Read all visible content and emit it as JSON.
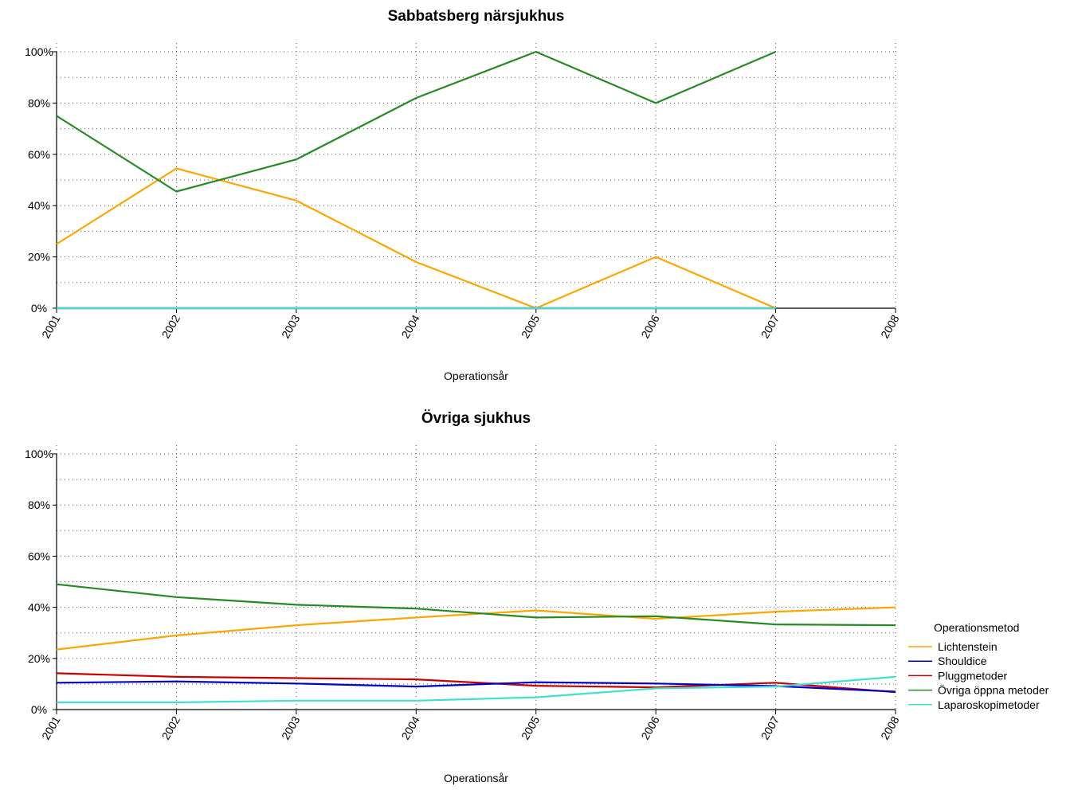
{
  "legend": {
    "title": "Operationsmetod",
    "placement": "right",
    "entries": [
      {
        "name": "Lichtenstein",
        "color": "#FFA500"
      },
      {
        "name": "Shouldice",
        "color": "#0000CD"
      },
      {
        "name": "Pluggmetoder",
        "color": "#CD0000"
      },
      {
        "name": "Övriga öppna metoder",
        "color": "#228B22"
      },
      {
        "name": "Laparoskopimetoder",
        "color": "#40E0D0"
      }
    ]
  },
  "chart_data": [
    {
      "type": "line",
      "title": "Sabbatsberg närsjukhus",
      "xlabel": "Operationsår",
      "ylabel": "",
      "x": [
        "2001",
        "2002",
        "2003",
        "2004",
        "2005",
        "2006",
        "2007",
        "2008"
      ],
      "ylim": [
        0,
        100
      ],
      "y_ticks": [
        "0%",
        "20%",
        "40%",
        "60%",
        "80%",
        "100%"
      ],
      "grid": true,
      "series": [
        {
          "name": "Lichtenstein",
          "color": "#FFA500",
          "values": [
            25,
            54.5,
            42,
            18,
            0,
            20,
            0,
            null
          ]
        },
        {
          "name": "Shouldice",
          "color": "#0000CD",
          "values": [
            0,
            0,
            0,
            0,
            0,
            0,
            0,
            null
          ]
        },
        {
          "name": "Pluggmetoder",
          "color": "#CD0000",
          "values": [
            0,
            0,
            0,
            0,
            0,
            0,
            0,
            null
          ]
        },
        {
          "name": "Laparoskopimetoder",
          "color": "#40E0D0",
          "values": [
            0,
            0,
            0,
            0,
            0,
            0,
            0,
            null
          ]
        },
        {
          "name": "Övriga öppna metoder",
          "color": "#228B22",
          "values": [
            75,
            45.5,
            58,
            82,
            100,
            80,
            100,
            null
          ]
        }
      ]
    },
    {
      "type": "line",
      "title": "Övriga sjukhus",
      "xlabel": "Operationsår",
      "ylabel": "",
      "x": [
        "2001",
        "2002",
        "2003",
        "2004",
        "2005",
        "2006",
        "2007",
        "2008"
      ],
      "ylim": [
        0,
        100
      ],
      "y_ticks": [
        "0%",
        "20%",
        "40%",
        "60%",
        "80%",
        "100%"
      ],
      "grid": true,
      "series": [
        {
          "name": "Lichtenstein",
          "color": "#FFA500",
          "values": [
            23.5,
            29,
            33,
            36,
            38.8,
            35.5,
            38.3,
            40
          ]
        },
        {
          "name": "Övriga öppna metoder",
          "color": "#228B22",
          "values": [
            49,
            44,
            41,
            39.5,
            36,
            36.5,
            33.3,
            33
          ]
        },
        {
          "name": "Pluggmetoder",
          "color": "#CD0000",
          "values": [
            14.2,
            12.8,
            12.3,
            11.8,
            9.3,
            8.7,
            10.5,
            6.8
          ]
        },
        {
          "name": "Shouldice",
          "color": "#0000CD",
          "values": [
            10.5,
            11,
            10.2,
            9,
            10.7,
            10.2,
            9.2,
            7
          ]
        },
        {
          "name": "Laparoskopimetoder",
          "color": "#40E0D0",
          "values": [
            2.8,
            2.8,
            3.5,
            3.5,
            4.8,
            8.3,
            9,
            12.8
          ]
        }
      ]
    }
  ]
}
